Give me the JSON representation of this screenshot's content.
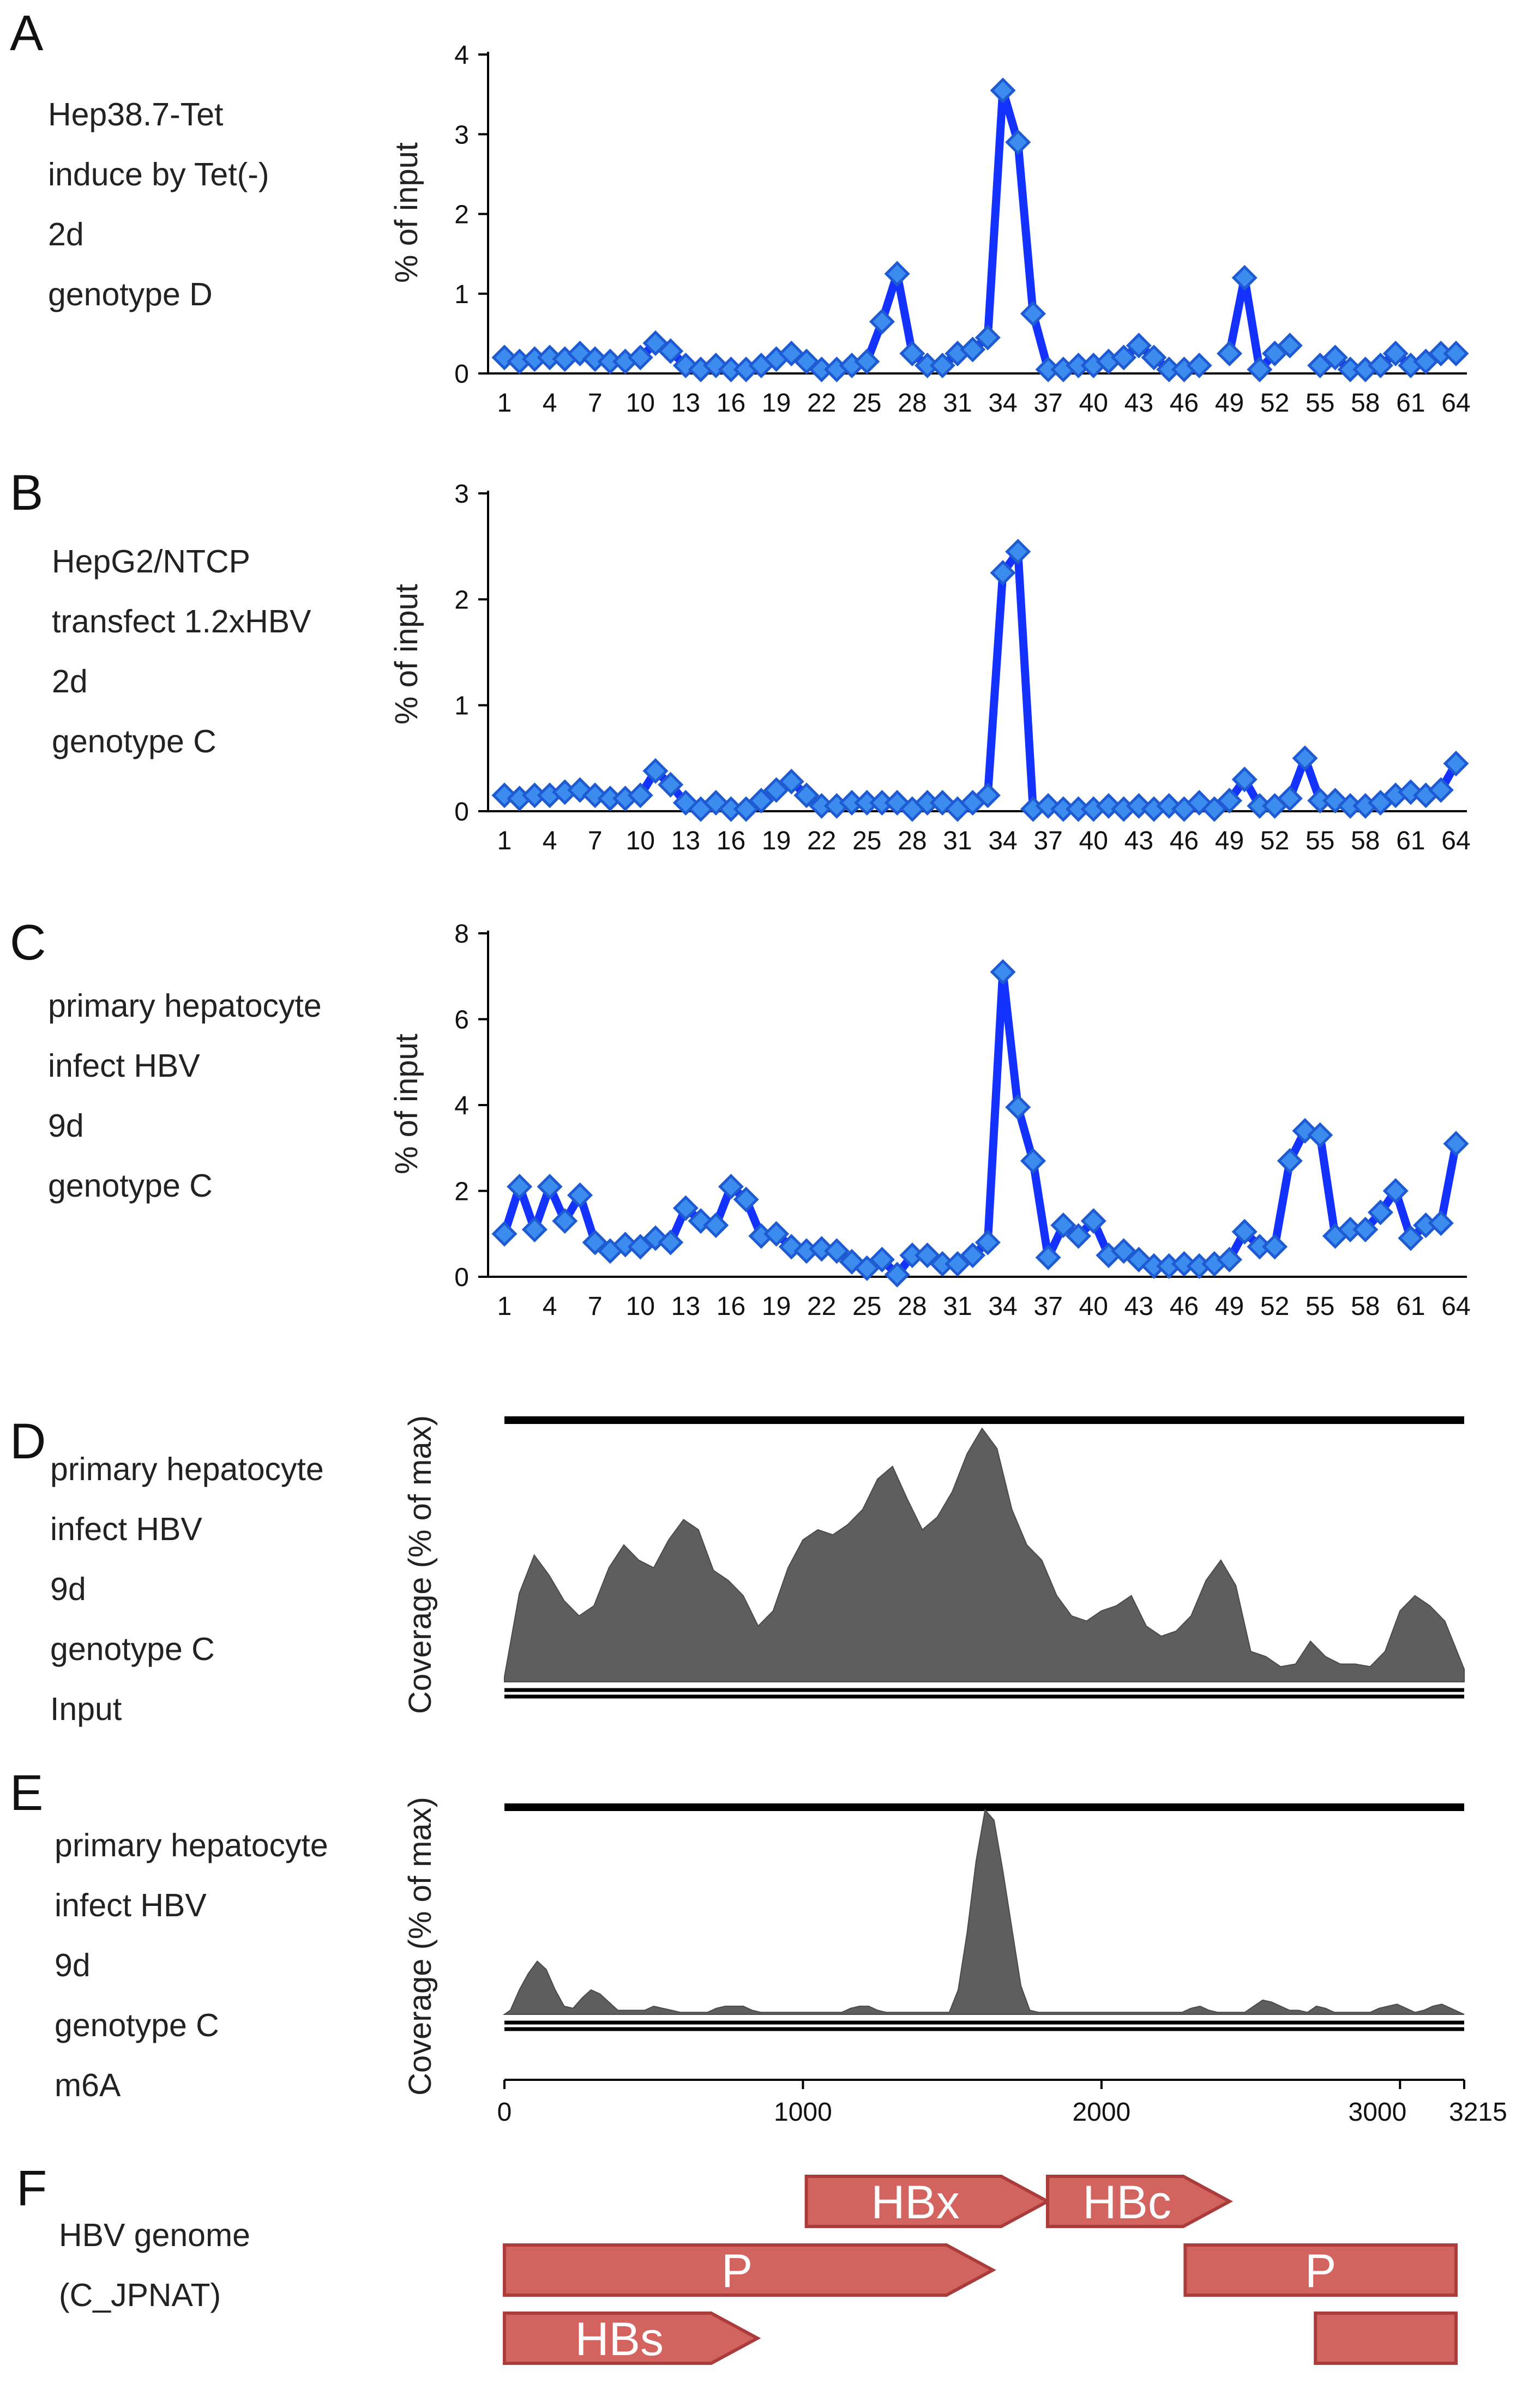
{
  "colors": {
    "line": "#1432ff",
    "marker_fill": "#3c8cf0",
    "marker_edge": "#1e5ad2",
    "coverage": "#5e5e5e",
    "gene_fill": "#d2635f",
    "gene_edge": "#aa3c3c"
  },
  "panels": [
    {
      "letter": "A",
      "lines": [
        "Hep38.7-Tet",
        "induce by Tet(-)",
        "2d",
        "genotype D"
      ]
    },
    {
      "letter": "B",
      "lines": [
        "HepG2/NTCP",
        "transfect 1.2xHBV",
        "2d",
        "genotype C"
      ]
    },
    {
      "letter": "C",
      "lines": [
        "primary hepatocyte",
        "infect HBV",
        "9d",
        "genotype C"
      ]
    },
    {
      "letter": "D",
      "lines": [
        "primary hepatocyte",
        "infect HBV",
        "9d",
        "genotype C",
        "Input"
      ]
    },
    {
      "letter": "E",
      "lines": [
        "primary hepatocyte",
        "infect HBV",
        "9d",
        "genotype C",
        "m6A"
      ]
    },
    {
      "letter": "F",
      "lines": [
        "HBV genome",
        "(C_JPNAT)"
      ]
    }
  ],
  "chart_data": [
    {
      "type": "line",
      "id": "A",
      "title": "",
      "ylabel": "% of input",
      "xlabel": "",
      "ylim": [
        0,
        4
      ],
      "yticks": [
        "0",
        "1",
        "2",
        "3",
        "4"
      ],
      "x_tick_labels": [
        "1",
        "4",
        "7",
        "10",
        "13",
        "16",
        "19",
        "22",
        "25",
        "28",
        "31",
        "34",
        "37",
        "40",
        "43",
        "46",
        "49",
        "52",
        "55",
        "58",
        "61",
        "64"
      ],
      "x": [
        1,
        2,
        3,
        4,
        5,
        6,
        7,
        8,
        9,
        10,
        11,
        12,
        13,
        14,
        15,
        16,
        17,
        18,
        19,
        20,
        21,
        22,
        23,
        24,
        25,
        26,
        27,
        28,
        29,
        30,
        31,
        32,
        33,
        34,
        35,
        36,
        37,
        38,
        39,
        40,
        41,
        42,
        43,
        44,
        45,
        46,
        47,
        48,
        49,
        50,
        51,
        52,
        53,
        54,
        55,
        56,
        57,
        58,
        59,
        60,
        61,
        62,
        63,
        64
      ],
      "values": [
        0.2,
        0.15,
        0.18,
        0.2,
        0.18,
        0.25,
        0.18,
        0.15,
        0.15,
        0.2,
        0.38,
        0.28,
        0.1,
        0.05,
        0.1,
        0.05,
        0.05,
        0.1,
        0.18,
        0.25,
        0.15,
        0.05,
        0.05,
        0.1,
        0.15,
        0.65,
        1.25,
        0.25,
        0.1,
        0.1,
        0.25,
        0.3,
        0.45,
        3.55,
        2.9,
        0.75,
        0.05,
        0.05,
        0.1,
        0.1,
        0.15,
        0.2,
        0.35,
        0.2,
        0.05,
        0.05,
        0.1,
        null,
        0.25,
        1.2,
        0.05,
        0.25,
        0.35,
        null,
        0.1,
        0.2,
        0.05,
        0.05,
        0.1,
        0.25,
        0.1,
        0.15,
        0.25,
        0.25
      ]
    },
    {
      "type": "line",
      "id": "B",
      "title": "",
      "ylabel": "% of input",
      "xlabel": "",
      "ylim": [
        0,
        3
      ],
      "yticks": [
        "0",
        "1",
        "2",
        "3"
      ],
      "x_tick_labels": [
        "1",
        "4",
        "7",
        "10",
        "13",
        "16",
        "19",
        "22",
        "25",
        "28",
        "31",
        "34",
        "37",
        "40",
        "43",
        "46",
        "49",
        "52",
        "55",
        "58",
        "61",
        "64"
      ],
      "x": [
        1,
        2,
        3,
        4,
        5,
        6,
        7,
        8,
        9,
        10,
        11,
        12,
        13,
        14,
        15,
        16,
        17,
        18,
        19,
        20,
        21,
        22,
        23,
        24,
        25,
        26,
        27,
        28,
        29,
        30,
        31,
        32,
        33,
        34,
        35,
        36,
        37,
        38,
        39,
        40,
        41,
        42,
        43,
        44,
        45,
        46,
        47,
        48,
        49,
        50,
        51,
        52,
        53,
        54,
        55,
        56,
        57,
        58,
        59,
        60,
        61,
        62,
        63,
        64
      ],
      "values": [
        0.15,
        0.12,
        0.15,
        0.15,
        0.18,
        0.2,
        0.15,
        0.12,
        0.12,
        0.15,
        0.38,
        0.25,
        0.08,
        0.02,
        0.08,
        0.02,
        0.02,
        0.1,
        0.2,
        0.28,
        0.15,
        0.05,
        0.05,
        0.08,
        0.08,
        0.08,
        0.08,
        0.02,
        0.08,
        0.08,
        0.02,
        0.08,
        0.15,
        2.25,
        2.45,
        0.02,
        0.05,
        0.02,
        0.02,
        0.02,
        0.05,
        0.02,
        0.05,
        0.02,
        0.05,
        0.02,
        0.08,
        0.02,
        0.1,
        0.3,
        0.05,
        0.05,
        0.12,
        0.5,
        0.1,
        0.1,
        0.05,
        0.05,
        0.08,
        0.15,
        0.18,
        0.15,
        0.2,
        0.45
      ]
    },
    {
      "type": "line",
      "id": "C",
      "title": "",
      "ylabel": "% of input",
      "xlabel": "",
      "ylim": [
        0,
        8
      ],
      "yticks": [
        "0",
        "2",
        "4",
        "6",
        "8"
      ],
      "x_tick_labels": [
        "1",
        "4",
        "7",
        "10",
        "13",
        "16",
        "19",
        "22",
        "25",
        "28",
        "31",
        "34",
        "37",
        "40",
        "43",
        "46",
        "49",
        "52",
        "55",
        "58",
        "61",
        "64"
      ],
      "x": [
        1,
        2,
        3,
        4,
        5,
        6,
        7,
        8,
        9,
        10,
        11,
        12,
        13,
        14,
        15,
        16,
        17,
        18,
        19,
        20,
        21,
        22,
        23,
        24,
        25,
        26,
        27,
        28,
        29,
        30,
        31,
        32,
        33,
        34,
        35,
        36,
        37,
        38,
        39,
        40,
        41,
        42,
        43,
        44,
        45,
        46,
        47,
        48,
        49,
        50,
        51,
        52,
        53,
        54,
        55,
        56,
        57,
        58,
        59,
        60,
        61,
        62,
        63,
        64
      ],
      "values": [
        1.0,
        2.1,
        1.1,
        2.1,
        1.3,
        1.9,
        0.8,
        0.6,
        0.75,
        0.7,
        0.9,
        0.8,
        1.6,
        1.3,
        1.2,
        2.1,
        1.8,
        0.95,
        1.0,
        0.7,
        0.6,
        0.65,
        0.6,
        0.35,
        0.2,
        0.4,
        0.05,
        0.5,
        0.5,
        0.3,
        0.3,
        0.5,
        0.8,
        7.1,
        3.95,
        2.7,
        0.45,
        1.2,
        0.95,
        1.3,
        0.5,
        0.6,
        0.4,
        0.25,
        0.25,
        0.3,
        0.25,
        0.3,
        0.4,
        1.05,
        0.7,
        0.7,
        2.7,
        3.4,
        3.3,
        0.95,
        1.1,
        1.1,
        1.5,
        2.0,
        0.9,
        1.2,
        1.25,
        3.1
      ]
    },
    {
      "type": "area",
      "id": "D",
      "title": "",
      "ylabel": "Coverage (% of max)",
      "xlabel": "",
      "x": [
        0,
        50,
        100,
        150,
        200,
        250,
        300,
        350,
        400,
        450,
        500,
        550,
        600,
        650,
        700,
        750,
        800,
        850,
        900,
        950,
        1000,
        1050,
        1100,
        1150,
        1200,
        1250,
        1300,
        1350,
        1400,
        1450,
        1500,
        1550,
        1600,
        1650,
        1700,
        1750,
        1800,
        1850,
        1900,
        1950,
        2000,
        2050,
        2100,
        2150,
        2200,
        2250,
        2300,
        2350,
        2400,
        2450,
        2500,
        2550,
        2600,
        2650,
        2700,
        2750,
        2800,
        2850,
        2900,
        2950,
        3000,
        3050,
        3100,
        3150,
        3215
      ],
      "values": [
        2,
        35,
        50,
        42,
        32,
        26,
        30,
        45,
        54,
        48,
        45,
        56,
        64,
        60,
        44,
        40,
        34,
        22,
        28,
        45,
        56,
        60,
        58,
        62,
        68,
        80,
        85,
        72,
        60,
        65,
        75,
        90,
        100,
        92,
        68,
        54,
        48,
        34,
        26,
        24,
        28,
        30,
        34,
        22,
        18,
        20,
        26,
        40,
        48,
        38,
        12,
        10,
        6,
        7,
        16,
        10,
        7,
        7,
        6,
        12,
        28,
        34,
        30,
        24,
        5
      ]
    },
    {
      "type": "area",
      "id": "E",
      "title": "",
      "ylabel": "Coverage (% of max)",
      "xlabel": "",
      "x_tick_labels": [
        "0",
        "1000",
        "2000",
        "3000",
        "3215"
      ],
      "x_ticks": [
        0,
        1000,
        2000,
        3000,
        3215
      ],
      "x": [
        0,
        20,
        50,
        80,
        110,
        140,
        170,
        200,
        230,
        260,
        290,
        320,
        350,
        380,
        410,
        440,
        470,
        500,
        530,
        560,
        590,
        620,
        650,
        680,
        710,
        740,
        770,
        800,
        830,
        860,
        890,
        920,
        950,
        980,
        1010,
        1040,
        1070,
        1100,
        1130,
        1160,
        1190,
        1220,
        1250,
        1280,
        1310,
        1340,
        1370,
        1400,
        1430,
        1460,
        1490,
        1520,
        1550,
        1580,
        1610,
        1640,
        1670,
        1700,
        1730,
        1760,
        1790,
        1820,
        1850,
        1880,
        1910,
        1940,
        1970,
        2000,
        2030,
        2060,
        2090,
        2120,
        2150,
        2180,
        2210,
        2240,
        2270,
        2300,
        2330,
        2360,
        2390,
        2420,
        2450,
        2480,
        2510,
        2540,
        2570,
        2600,
        2630,
        2660,
        2690,
        2720,
        2750,
        2780,
        2810,
        2840,
        2870,
        2900,
        2930,
        2960,
        2990,
        3020,
        3050,
        3080,
        3110,
        3140,
        3170,
        3200,
        3215
      ],
      "values": [
        0,
        2,
        12,
        20,
        26,
        22,
        12,
        4,
        3,
        8,
        12,
        10,
        6,
        2,
        2,
        2,
        2,
        4,
        3,
        2,
        1,
        1,
        1,
        1,
        3,
        4,
        4,
        4,
        2,
        1,
        1,
        1,
        1,
        1,
        1,
        1,
        1,
        1,
        1,
        3,
        4,
        4,
        2,
        1,
        1,
        1,
        1,
        1,
        1,
        1,
        1,
        12,
        40,
        75,
        100,
        95,
        70,
        42,
        14,
        2,
        1,
        1,
        1,
        1,
        1,
        1,
        1,
        1,
        1,
        1,
        1,
        1,
        1,
        1,
        1,
        1,
        1,
        3,
        4,
        2,
        1,
        1,
        1,
        1,
        4,
        7,
        6,
        4,
        2,
        2,
        1,
        4,
        3,
        1,
        1,
        1,
        1,
        1,
        3,
        4,
        5,
        3,
        1,
        2,
        4,
        5,
        3,
        1,
        0
      ]
    }
  ],
  "genome": {
    "length": 3215,
    "genes": [
      {
        "label": "HBx",
        "start": 1020,
        "end": 1835,
        "row": 0,
        "dir": "right"
      },
      {
        "label": "HBc",
        "start": 1835,
        "end": 2450,
        "row": 0,
        "dir": "right"
      },
      {
        "label": "P",
        "start": 0,
        "end": 1650,
        "row": 1,
        "dir": "right"
      },
      {
        "label": "P",
        "start": 2300,
        "end": 3215,
        "row": 1,
        "dir": "none"
      },
      {
        "label": "HBs",
        "start": 0,
        "end": 855,
        "row": 2,
        "dir": "right"
      },
      {
        "label": "",
        "start": 2740,
        "end": 3215,
        "row": 2,
        "dir": "none"
      }
    ]
  }
}
